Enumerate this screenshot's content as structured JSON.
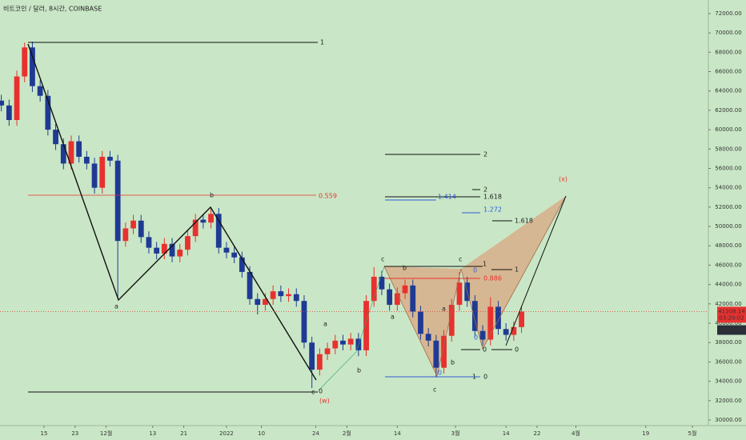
{
  "chart_data": {
    "type": "candlestick",
    "title": "비트코인 / 달러, 8시간, COINBASE",
    "up_color": "#e8312f",
    "down_color": "#1f3a93",
    "x": [
      3,
      5,
      7,
      9,
      11,
      13,
      15,
      17,
      19,
      21,
      23,
      25,
      27,
      29,
      31,
      33,
      35,
      37,
      39,
      41,
      43,
      45,
      47,
      49,
      51,
      53,
      55,
      57,
      59,
      61,
      63,
      65,
      67,
      69,
      71,
      73,
      75,
      77,
      79,
      81,
      83,
      85,
      87,
      89,
      91,
      93,
      95,
      97,
      99,
      101,
      103,
      105,
      107,
      109,
      111,
      113,
      115,
      117,
      119,
      121,
      123,
      125,
      127,
      129,
      131,
      133,
      135,
      137
    ],
    "open": [
      63000,
      62500,
      61000,
      65500,
      68500,
      64500,
      63500,
      60000,
      58500,
      56500,
      58800,
      57200,
      56500,
      54000,
      57200,
      56800,
      48500,
      49800,
      50600,
      48900,
      47800,
      47200,
      48200,
      46900,
      47600,
      49000,
      50700,
      50400,
      51300,
      47800,
      47300,
      46800,
      45300,
      42500,
      41900,
      42500,
      43300,
      42800,
      43000,
      42300,
      38000,
      35200,
      36800,
      37400,
      38200,
      37800,
      38400,
      37200,
      42300,
      44800,
      43500,
      41900,
      43100,
      43900,
      41200,
      38900,
      38200,
      35400,
      38700,
      41900,
      44200,
      42300,
      39200,
      38300,
      41700,
      39400,
      38800,
      39600
    ],
    "high": [
      63600,
      63100,
      66100,
      69000,
      69100,
      65100,
      64100,
      60600,
      59100,
      59400,
      59400,
      57800,
      57100,
      57800,
      57800,
      57400,
      50400,
      51200,
      51200,
      49500,
      48400,
      48800,
      48800,
      48200,
      49600,
      51300,
      51300,
      51900,
      51900,
      48400,
      47900,
      47400,
      45900,
      43100,
      43100,
      43900,
      43900,
      43600,
      43600,
      42900,
      38600,
      37400,
      38000,
      38800,
      38800,
      39000,
      39000,
      42900,
      45800,
      45400,
      44100,
      43700,
      44500,
      44500,
      41800,
      39500,
      38800,
      39300,
      42500,
      45300,
      44800,
      42900,
      39800,
      42700,
      42300,
      40000,
      40200,
      41800
    ],
    "low": [
      61900,
      60400,
      60400,
      64900,
      63900,
      62900,
      59400,
      57900,
      55900,
      55900,
      56600,
      55900,
      53400,
      53400,
      56200,
      42600,
      47900,
      49200,
      48300,
      47200,
      46600,
      46600,
      46300,
      46300,
      47000,
      48400,
      49800,
      49800,
      47200,
      46700,
      46200,
      44700,
      41900,
      40900,
      41300,
      41900,
      42200,
      42200,
      41700,
      37400,
      33300,
      34600,
      36200,
      36800,
      37200,
      37200,
      36600,
      36600,
      41700,
      42900,
      41300,
      41300,
      42500,
      40600,
      38300,
      37600,
      34400,
      34800,
      38100,
      41300,
      41700,
      38600,
      37700,
      37700,
      38800,
      38200,
      38200,
      39000
    ],
    "close": [
      62500,
      61000,
      65500,
      68500,
      64500,
      63500,
      60000,
      58500,
      56500,
      58800,
      57200,
      56500,
      54000,
      57200,
      56800,
      48500,
      49800,
      50600,
      48900,
      47800,
      47200,
      48200,
      46900,
      47600,
      49000,
      50700,
      50400,
      51300,
      47800,
      47300,
      46800,
      45300,
      42500,
      41900,
      42500,
      43300,
      42800,
      43000,
      42300,
      38000,
      35200,
      36800,
      37400,
      38200,
      37800,
      38400,
      37200,
      42300,
      44800,
      43500,
      41900,
      43100,
      43900,
      41200,
      38900,
      38200,
      35400,
      38700,
      41900,
      44200,
      42300,
      39200,
      38300,
      41700,
      39400,
      38800,
      39600,
      41200
    ],
    "xlim": [
      2.66,
      185.13
    ],
    "xticks": [
      {
        "value": 14,
        "label": "15"
      },
      {
        "value": 22,
        "label": "23"
      },
      {
        "value": 30,
        "label": "12월"
      },
      {
        "value": 42,
        "label": "13"
      },
      {
        "value": 50,
        "label": "21"
      },
      {
        "value": 61,
        "label": "2022"
      },
      {
        "value": 70,
        "label": "10"
      },
      {
        "value": 84,
        "label": "24"
      },
      {
        "value": 92,
        "label": "2월"
      },
      {
        "value": 105,
        "label": "14"
      },
      {
        "value": 120,
        "label": "3월"
      },
      {
        "value": 133,
        "label": "14"
      },
      {
        "value": 141,
        "label": "22"
      },
      {
        "value": 151,
        "label": "4월"
      },
      {
        "value": 169,
        "label": "19"
      },
      {
        "value": 181,
        "label": "5월"
      }
    ],
    "ylim": [
      29420,
      73400
    ],
    "yticks": [
      {
        "value": 72000,
        "label": "72000.00"
      },
      {
        "value": 70000,
        "label": "70000.00"
      },
      {
        "value": 68000,
        "label": "68000.00"
      },
      {
        "value": 66000,
        "label": "66000.00"
      },
      {
        "value": 64000,
        "label": "64000.00"
      },
      {
        "value": 62000,
        "label": "62000.00"
      },
      {
        "value": 60000,
        "label": "60000.00"
      },
      {
        "value": 58000,
        "label": "58000.00"
      },
      {
        "value": 56000,
        "label": "56000.00"
      },
      {
        "value": 54000,
        "label": "54000.00"
      },
      {
        "value": 52000,
        "label": "52000.00"
      },
      {
        "value": 50000,
        "label": "50000.00"
      },
      {
        "value": 48000,
        "label": "48000.00"
      },
      {
        "value": 46000,
        "label": "46000.00"
      },
      {
        "value": 44000,
        "label": "44000.00"
      },
      {
        "value": 42000,
        "label": "42000.00"
      },
      {
        "value": 40000,
        "label": "40000.00"
      },
      {
        "value": 38000,
        "label": "38000.00"
      },
      {
        "value": 36000,
        "label": "36000.00"
      },
      {
        "value": 34000,
        "label": "34000.00"
      },
      {
        "value": 32000,
        "label": "32000.00"
      },
      {
        "value": 30000,
        "label": "30000.00"
      }
    ],
    "last_price": 41208.14,
    "countdown": "03:20:02",
    "marked_price": {
      "value": 39298.1,
      "label": "39298.10"
    },
    "annotations": [
      "1",
      "0.559",
      "c",
      "0",
      "a",
      "b",
      "(w)",
      "(x)",
      "a",
      "b",
      "c",
      "a",
      "b",
      "c",
      "a",
      "b",
      "c",
      "2",
      "2",
      "1.414",
      "1.618",
      "1.272",
      "1.618",
      "1",
      "0",
      "1",
      "0.886",
      "0",
      "0",
      "0",
      "0",
      "1",
      "0"
    ]
  }
}
